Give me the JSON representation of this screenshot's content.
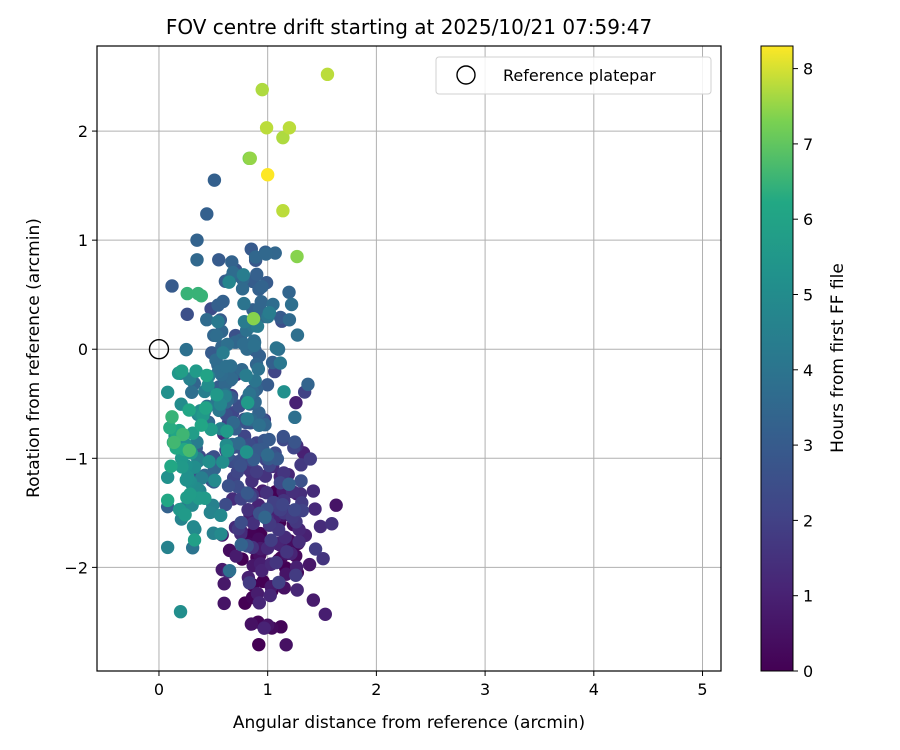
{
  "chart_data": {
    "type": "scatter",
    "title": "FOV centre drift starting at 2025/10/21 07:59:47",
    "xlabel": "Angular distance from reference (arcmin)",
    "ylabel": "Rotation from reference (arcmin)",
    "xlim": [
      -0.57,
      5.17
    ],
    "ylim": [
      -2.95,
      2.78
    ],
    "xticks": [
      0,
      1,
      2,
      3,
      4,
      5
    ],
    "yticks": [
      -2,
      -1,
      0,
      1,
      2
    ],
    "grid": true,
    "legend": {
      "placement": "upper-right",
      "entries": [
        "Reference platepar"
      ]
    },
    "reference_point": {
      "x": 0,
      "y": 0
    },
    "colorbar": {
      "label": "Hours from first FF file",
      "colormap": "viridis",
      "range": [
        0,
        8.3
      ],
      "ticks": [
        0,
        1,
        2,
        3,
        4,
        5,
        6,
        7,
        8
      ]
    },
    "colors": {
      "grid": "#b0b0b0",
      "reference_edge": "#000000"
    },
    "cluster_centers": [
      {
        "x": 0.98,
        "y": -2.0,
        "h": 0.5,
        "sx": 0.2,
        "sy": 0.27,
        "n": 55
      },
      {
        "x": 1.06,
        "y": -1.45,
        "h": 1.5,
        "sx": 0.22,
        "sy": 0.3,
        "n": 75
      },
      {
        "x": 0.85,
        "y": -0.95,
        "h": 2.6,
        "sx": 0.24,
        "sy": 0.32,
        "n": 80
      },
      {
        "x": 0.65,
        "y": -0.2,
        "h": 3.6,
        "sx": 0.22,
        "sy": 0.32,
        "n": 75
      },
      {
        "x": 0.4,
        "y": -0.8,
        "h": 5.0,
        "sx": 0.17,
        "sy": 0.4,
        "n": 50
      },
      {
        "x": 0.25,
        "y": -1.2,
        "h": 5.5,
        "sx": 0.09,
        "sy": 0.3,
        "n": 18
      },
      {
        "x": 0.75,
        "y": 0.55,
        "h": 3.3,
        "sx": 0.22,
        "sy": 0.25,
        "n": 30
      },
      {
        "x": 0.18,
        "y": -0.85,
        "h": 6.0,
        "sx": 0.06,
        "sy": 0.2,
        "n": 10
      }
    ],
    "points": [
      {
        "x": 0.12,
        "y": 0.58,
        "h": 3.0
      },
      {
        "x": 0.26,
        "y": 0.51,
        "h": 6.5
      },
      {
        "x": 0.36,
        "y": 0.51,
        "h": 6.5
      },
      {
        "x": 0.39,
        "y": 0.49,
        "h": 6.5
      },
      {
        "x": 0.26,
        "y": 0.32,
        "h": 2.5
      },
      {
        "x": 0.35,
        "y": 0.82,
        "h": 3.5
      },
      {
        "x": 0.35,
        "y": 1.0,
        "h": 3.3
      },
      {
        "x": 0.44,
        "y": 1.24,
        "h": 3.2
      },
      {
        "x": 0.51,
        "y": 1.55,
        "h": 3.2
      },
      {
        "x": 0.55,
        "y": 0.82,
        "h": 3.0
      },
      {
        "x": 0.67,
        "y": 0.8,
        "h": 3.3
      },
      {
        "x": 0.66,
        "y": 0.65,
        "h": 3.3
      },
      {
        "x": 0.92,
        "y": 0.55,
        "h": 3.2
      },
      {
        "x": 0.99,
        "y": 0.61,
        "h": 3.0
      },
      {
        "x": 0.98,
        "y": 0.89,
        "h": 3.2
      },
      {
        "x": 0.98,
        "y": 0.3,
        "h": 3.4
      },
      {
        "x": 1.22,
        "y": 0.41,
        "h": 3.8
      },
      {
        "x": 1.2,
        "y": 0.27,
        "h": 3.6
      },
      {
        "x": 0.87,
        "y": 0.28,
        "h": 7.4
      },
      {
        "x": 1.27,
        "y": 0.85,
        "h": 7.4
      },
      {
        "x": 1.14,
        "y": 1.27,
        "h": 7.8
      },
      {
        "x": 1.0,
        "y": 1.6,
        "h": 8.3
      },
      {
        "x": 0.83,
        "y": 1.75,
        "h": 7.3
      },
      {
        "x": 0.84,
        "y": 1.75,
        "h": 7.5
      },
      {
        "x": 1.14,
        "y": 1.94,
        "h": 7.7
      },
      {
        "x": 1.2,
        "y": 2.03,
        "h": 7.8
      },
      {
        "x": 0.99,
        "y": 2.03,
        "h": 7.8
      },
      {
        "x": 0.95,
        "y": 2.38,
        "h": 7.7
      },
      {
        "x": 1.55,
        "y": 2.52,
        "h": 7.8
      },
      {
        "x": 1.1,
        "y": 0.0,
        "h": 3.8
      },
      {
        "x": 1.15,
        "y": -0.39,
        "h": 5.2
      },
      {
        "x": 1.26,
        "y": -0.49,
        "h": 1.0
      },
      {
        "x": 1.33,
        "y": -0.95,
        "h": 1.0
      },
      {
        "x": 1.42,
        "y": -1.3,
        "h": 1.3
      },
      {
        "x": 1.63,
        "y": -1.43,
        "h": 0.6
      },
      {
        "x": 1.59,
        "y": -1.6,
        "h": 1.5
      },
      {
        "x": 1.51,
        "y": -1.92,
        "h": 1.6
      },
      {
        "x": 1.42,
        "y": -2.3,
        "h": 0.8
      },
      {
        "x": 1.53,
        "y": -2.43,
        "h": 0.9
      },
      {
        "x": 1.17,
        "y": -2.71,
        "h": 0.5
      },
      {
        "x": 1.0,
        "y": -2.53,
        "h": 0.6
      },
      {
        "x": 0.85,
        "y": -2.52,
        "h": 0.5
      },
      {
        "x": 0.97,
        "y": -2.55,
        "h": 0.5
      },
      {
        "x": 0.6,
        "y": -2.33,
        "h": 0.6
      },
      {
        "x": 0.6,
        "y": -2.15,
        "h": 0.7
      },
      {
        "x": 0.65,
        "y": -2.03,
        "h": 3.8
      },
      {
        "x": 0.19,
        "y": -1.47,
        "h": 5.5
      },
      {
        "x": 0.12,
        "y": -0.62,
        "h": 6.5
      },
      {
        "x": 0.1,
        "y": -0.72,
        "h": 6.3
      },
      {
        "x": 0.18,
        "y": -0.22,
        "h": 5.5
      },
      {
        "x": 0.21,
        "y": -0.2,
        "h": 5.8
      },
      {
        "x": 0.31,
        "y": -1.82,
        "h": 4.0
      },
      {
        "x": 0.33,
        "y": -1.65,
        "h": 4.8
      },
      {
        "x": 0.43,
        "y": -0.54,
        "h": 6.0
      },
      {
        "x": 0.44,
        "y": -0.24,
        "h": 6.0
      },
      {
        "x": 0.0,
        "y": -0.0,
        "h": 0
      }
    ]
  }
}
